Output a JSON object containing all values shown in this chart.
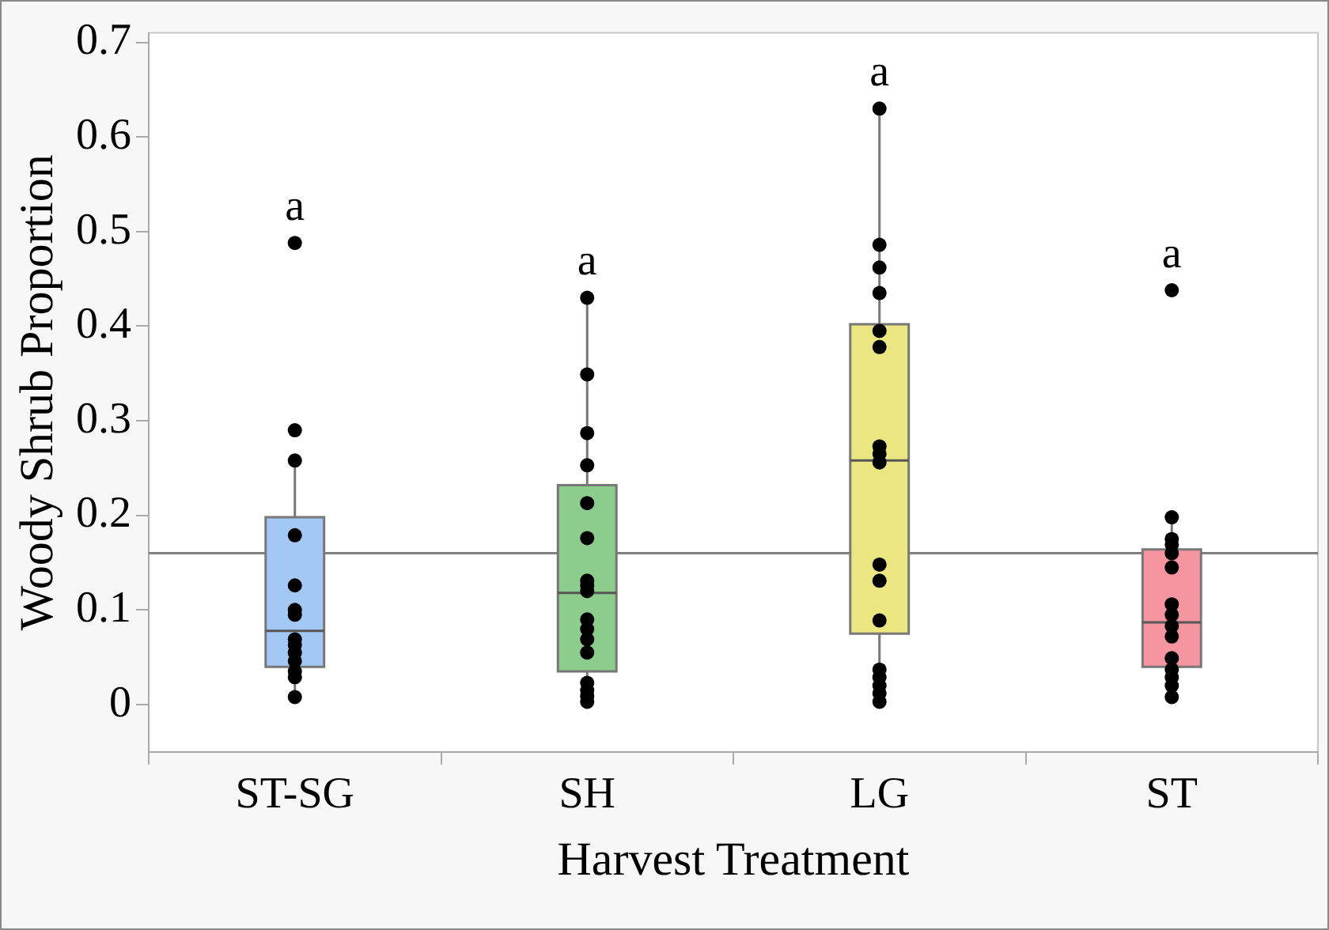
{
  "chart_data": {
    "type": "box",
    "xlabel": "Harvest Treatment",
    "ylabel": "Woody Shrub Proportion",
    "categories": [
      "ST-SG",
      "SH",
      "LG",
      "ST"
    ],
    "boxes": [
      {
        "low": 0.008,
        "q1": 0.04,
        "median": 0.078,
        "q3": 0.198,
        "high": 0.258
      },
      {
        "low": 0.003,
        "q1": 0.035,
        "median": 0.118,
        "q3": 0.232,
        "high": 0.43
      },
      {
        "low": 0.003,
        "q1": 0.075,
        "median": 0.258,
        "q3": 0.402,
        "high": 0.63
      },
      {
        "low": 0.008,
        "q1": 0.04,
        "median": 0.087,
        "q3": 0.164,
        "high": 0.198
      }
    ],
    "colors": [
      "#a3c8f5",
      "#8ccc8c",
      "#ebe582",
      "#f5959f"
    ],
    "series": [
      {
        "type": "scatter",
        "color": "#000000",
        "marker": "circle",
        "x": [
          "ST-SG",
          "ST-SG",
          "ST-SG",
          "ST-SG",
          "ST-SG",
          "ST-SG",
          "ST-SG",
          "ST-SG",
          "ST-SG",
          "ST-SG",
          "ST-SG",
          "ST-SG",
          "ST-SG",
          "ST-SG",
          "SH",
          "SH",
          "SH",
          "SH",
          "SH",
          "SH",
          "SH",
          "SH",
          "SH",
          "SH",
          "SH",
          "SH",
          "SH",
          "SH",
          "SH",
          "SH",
          "SH",
          "LG",
          "LG",
          "LG",
          "LG",
          "LG",
          "LG",
          "LG",
          "LG",
          "LG",
          "LG",
          "LG",
          "LG",
          "LG",
          "LG",
          "LG",
          "LG",
          "LG",
          "ST",
          "ST",
          "ST",
          "ST",
          "ST",
          "ST",
          "ST",
          "ST",
          "ST",
          "ST",
          "ST",
          "ST",
          "ST",
          "ST",
          "ST"
        ],
        "values": [
          0.488,
          0.29,
          0.258,
          0.179,
          0.126,
          0.1,
          0.095,
          0.069,
          0.063,
          0.055,
          0.046,
          0.035,
          0.029,
          0.008,
          0.43,
          0.349,
          0.287,
          0.253,
          0.213,
          0.176,
          0.131,
          0.126,
          0.12,
          0.09,
          0.08,
          0.069,
          0.055,
          0.023,
          0.015,
          0.009,
          0.003,
          0.63,
          0.486,
          0.462,
          0.435,
          0.395,
          0.378,
          0.273,
          0.265,
          0.256,
          0.148,
          0.131,
          0.089,
          0.037,
          0.029,
          0.02,
          0.012,
          0.003,
          0.438,
          0.198,
          0.175,
          0.169,
          0.16,
          0.145,
          0.106,
          0.095,
          0.083,
          0.072,
          0.049,
          0.037,
          0.029,
          0.02,
          0.008
        ]
      }
    ],
    "ref_lines": [
      {
        "axis": "y",
        "value": 0.16,
        "color": "#808080"
      }
    ],
    "annotations": [
      "a",
      "a",
      "a",
      "a"
    ],
    "ylim": [
      -0.05,
      0.71
    ],
    "yticks": [
      0,
      0.1,
      0.2,
      0.3,
      0.4,
      0.5,
      0.6,
      0.7
    ],
    "grid": false,
    "legend": false
  }
}
